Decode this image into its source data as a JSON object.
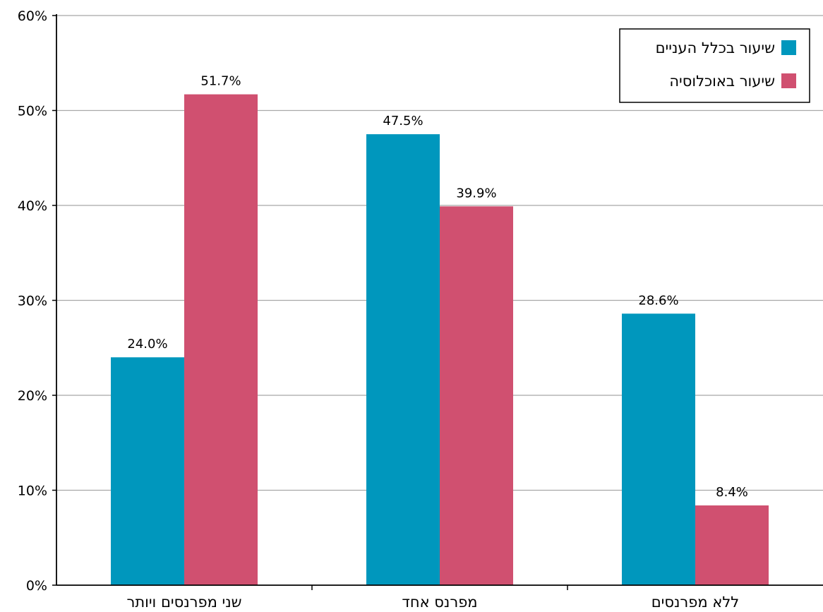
{
  "chart_data": {
    "type": "bar",
    "categories": [
      "שני מפרנסים ויותר",
      "מפרנס אחד",
      "ללא מפרנסים"
    ],
    "series": [
      {
        "name": "שיעור בכלל העניים",
        "values": [
          24.0,
          47.5,
          28.6
        ],
        "color": "#0097bd"
      },
      {
        "name": "שיעור באוכלוסיה",
        "values": [
          51.7,
          39.9,
          8.4
        ],
        "color": "#d05070"
      }
    ],
    "data_labels": [
      [
        "24.0%",
        "47.5%",
        "28.6%"
      ],
      [
        "51.7%",
        "39.9%",
        "8.4%"
      ]
    ],
    "y_ticks": [
      "0%",
      "10%",
      "20%",
      "30%",
      "40%",
      "50%",
      "60%"
    ],
    "ylim": [
      0,
      60
    ],
    "grid": true,
    "legend_position": "top-right",
    "title": "",
    "xlabel": "",
    "ylabel": ""
  }
}
